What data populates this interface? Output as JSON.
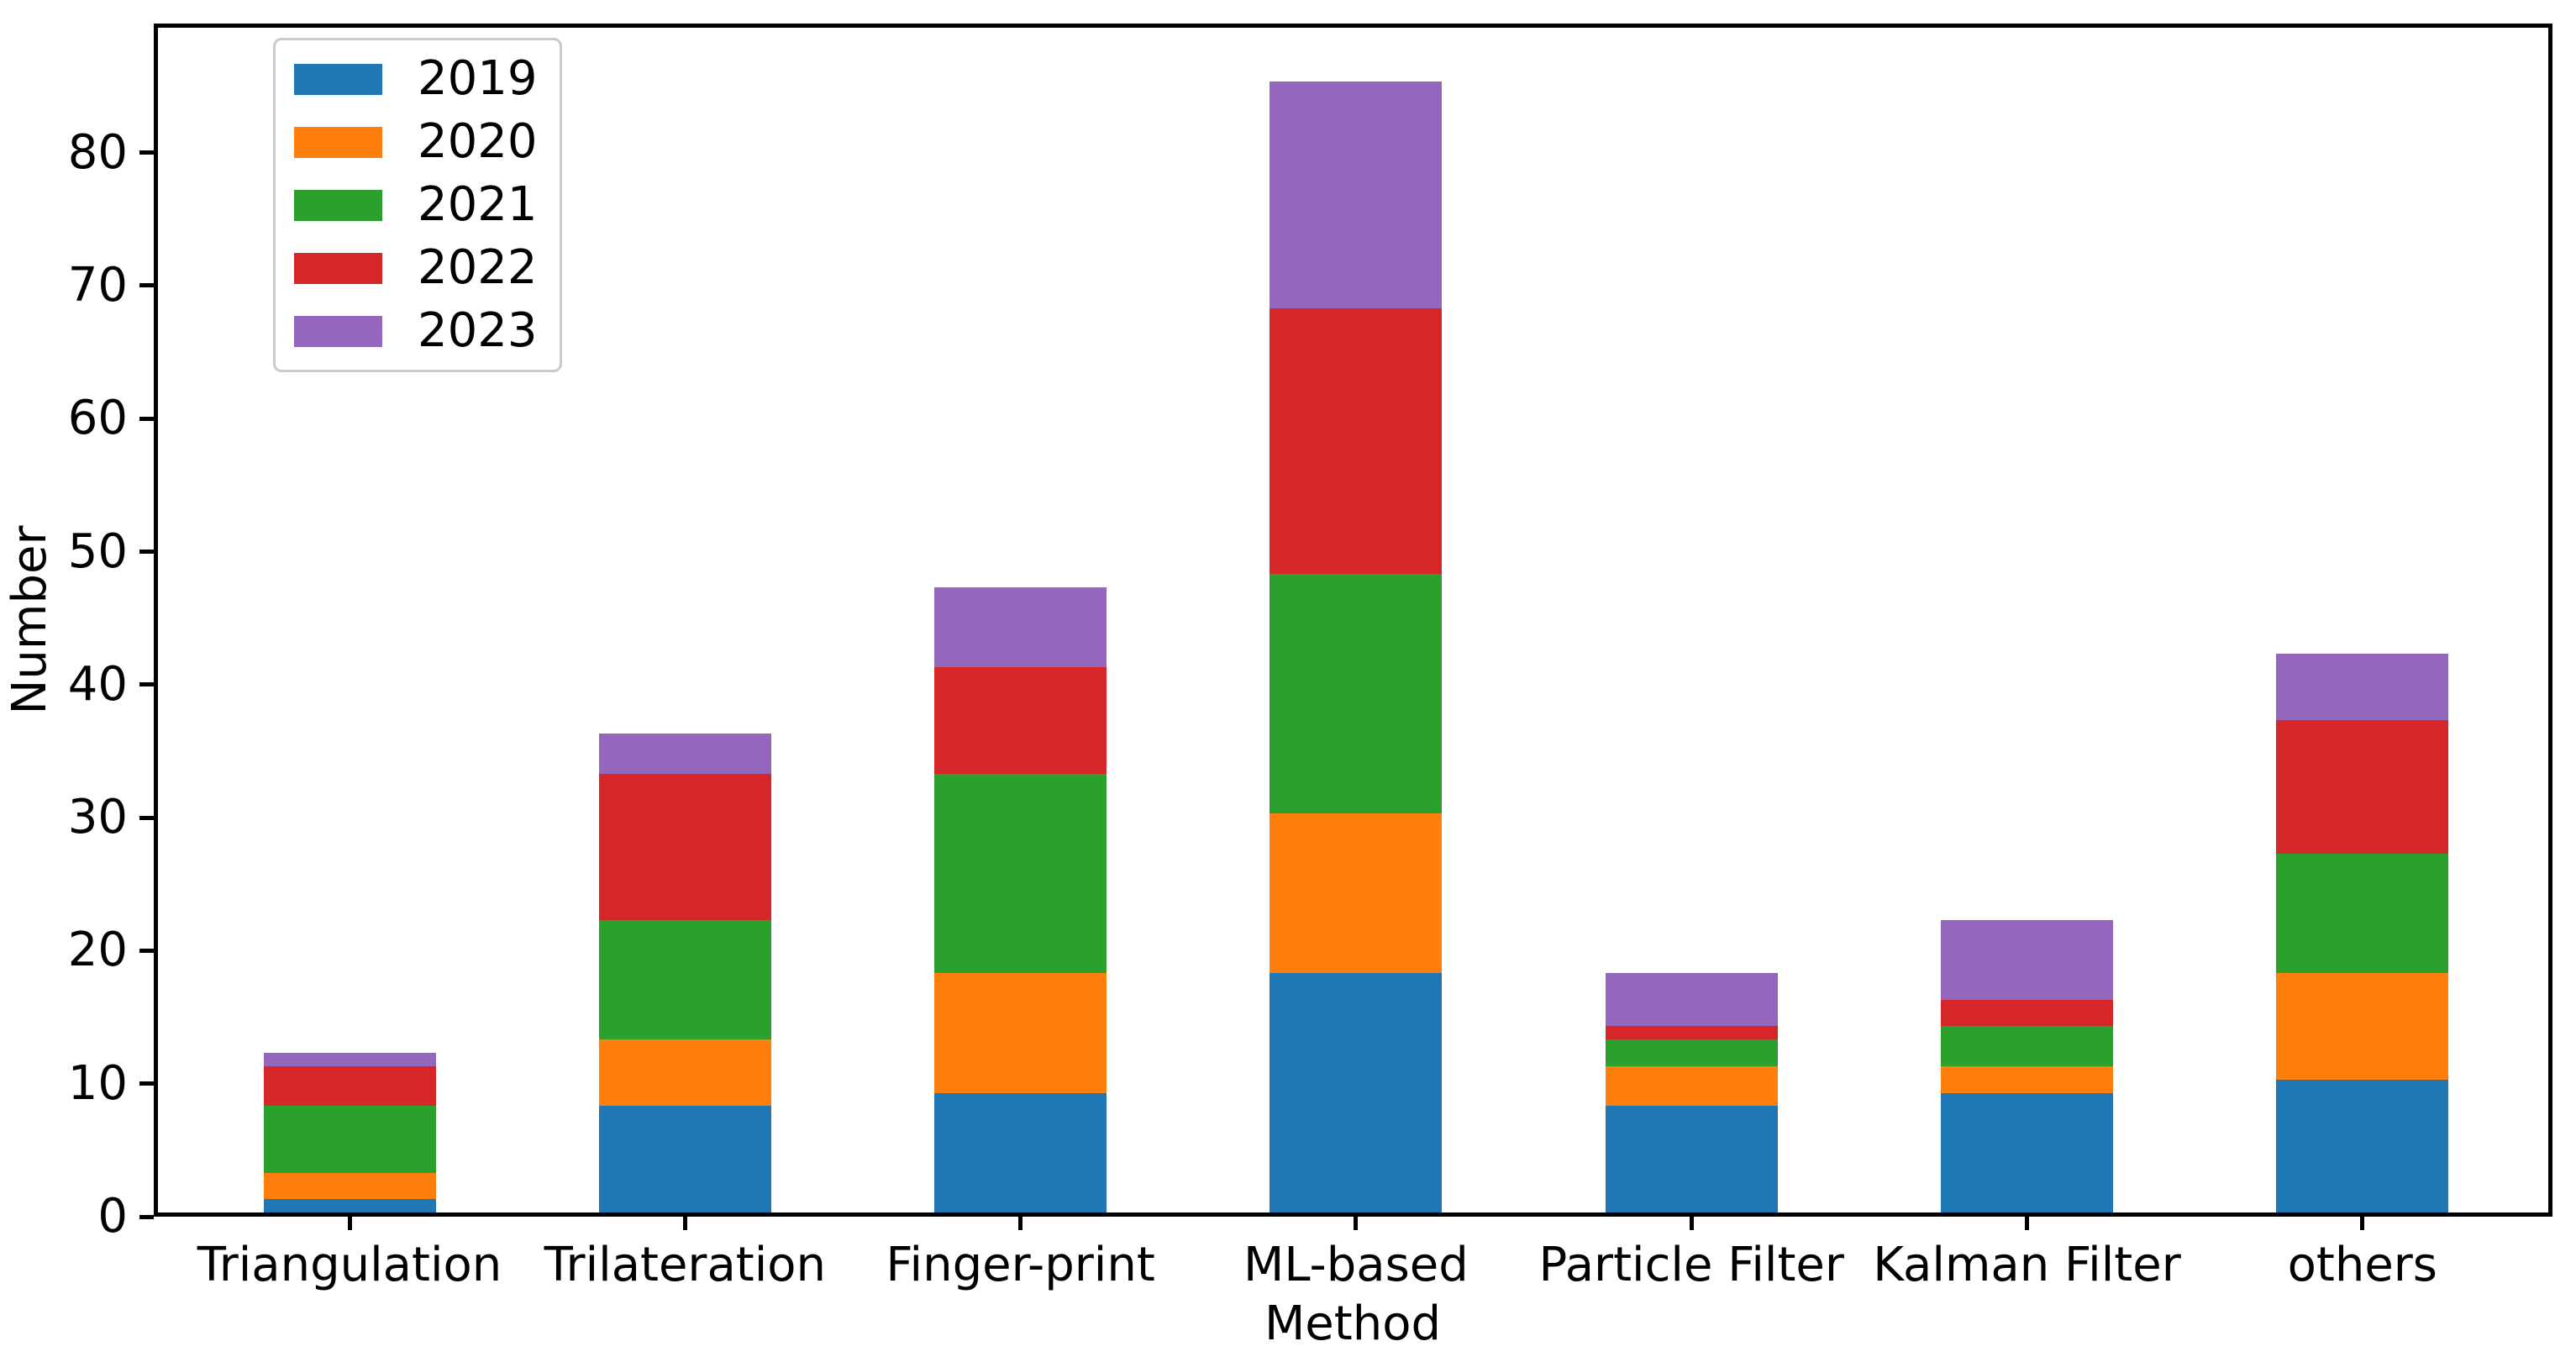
{
  "chart_data": {
    "type": "bar",
    "stacked": true,
    "title": "",
    "xlabel": "Method",
    "ylabel": "Number",
    "categories": [
      "Triangulation",
      "Trilateration",
      "Finger-print",
      "ML-based",
      "Particle Filter",
      "Kalman Filter",
      "others"
    ],
    "series": [
      {
        "name": "2019",
        "color": "#1f77b4",
        "values": [
          1,
          8,
          9,
          18,
          8,
          9,
          10
        ]
      },
      {
        "name": "2020",
        "color": "#ff7f0e",
        "values": [
          2,
          5,
          9,
          12,
          3,
          2,
          8
        ]
      },
      {
        "name": "2021",
        "color": "#2ca02c",
        "values": [
          5,
          9,
          15,
          18,
          2,
          3,
          9
        ]
      },
      {
        "name": "2022",
        "color": "#d62728",
        "values": [
          3,
          11,
          8,
          20,
          1,
          2,
          10
        ]
      },
      {
        "name": "2023",
        "color": "#9467bd",
        "values": [
          1,
          3,
          6,
          17,
          4,
          6,
          5
        ]
      }
    ],
    "yticks": [
      0,
      10,
      20,
      30,
      40,
      50,
      60,
      70,
      80
    ],
    "ylim": [
      0,
      89.6
    ],
    "grid": false,
    "legend_position": "upper left",
    "axis_color": "#000000",
    "background_color": "#ffffff"
  }
}
